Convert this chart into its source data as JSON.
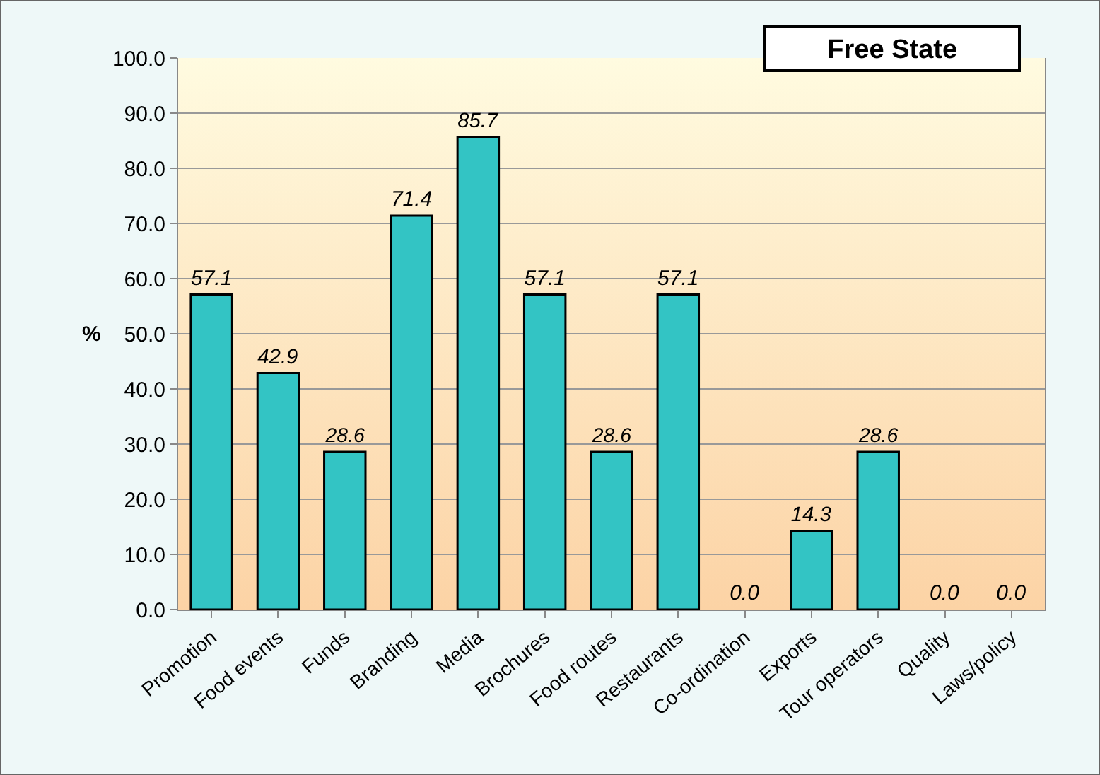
{
  "chart_data": {
    "type": "bar",
    "title": "Free State",
    "ylabel": "%",
    "categories": [
      "Promotion",
      "Food events",
      "Funds",
      "Branding",
      "Media",
      "Brochures",
      "Food routes",
      "Restaurants",
      "Co-ordination",
      "Exports",
      "Tour operators",
      "Quality",
      "Laws/policy"
    ],
    "values": [
      57.1,
      42.9,
      28.6,
      71.4,
      85.7,
      57.1,
      28.6,
      57.1,
      0.0,
      14.3,
      28.6,
      0.0,
      0.0
    ],
    "value_labels": [
      "57.1",
      "42.9",
      "28.6",
      "71.4",
      "85.7",
      "57.1",
      "28.6",
      "57.1",
      "0.0",
      "14.3",
      "28.6",
      "0.0",
      "0.0"
    ],
    "color": "#33c4c4",
    "ylim": [
      0,
      100
    ],
    "yticks": [
      {
        "value": 0,
        "label": "0.0"
      },
      {
        "value": 10,
        "label": "10.0"
      },
      {
        "value": 20,
        "label": "20.0"
      },
      {
        "value": 30,
        "label": "30.0"
      },
      {
        "value": 40,
        "label": "40.0"
      },
      {
        "value": 50,
        "label": "50.0"
      },
      {
        "value": 60,
        "label": "60.0"
      },
      {
        "value": 70,
        "label": "70.0"
      },
      {
        "value": 80,
        "label": "80.0"
      },
      {
        "value": 90,
        "label": "90.0"
      },
      {
        "value": 100,
        "label": "100.0"
      }
    ],
    "grid": "y",
    "legend": false
  }
}
